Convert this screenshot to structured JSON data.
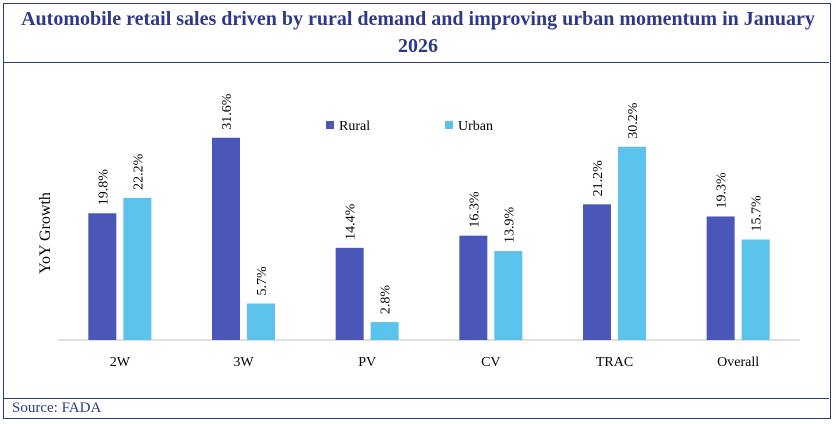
{
  "chart_data": {
    "type": "bar",
    "title": "Automobile retail sales driven by rural demand and improving urban momentum in January 2026",
    "xlabel": "",
    "ylabel": "YoY Growth",
    "ylim": [
      0,
      35
    ],
    "categories": [
      "2W",
      "3W",
      "PV",
      "CV",
      "TRAC",
      "Overall"
    ],
    "series": [
      {
        "name": "Rural",
        "color": "#4a56b8",
        "values": [
          19.8,
          31.6,
          14.4,
          16.3,
          21.2,
          19.3
        ],
        "labels": [
          "19.8%",
          "31.6%",
          "14.4%",
          "16.3%",
          "21.2%",
          "19.3%"
        ]
      },
      {
        "name": "Urban",
        "color": "#5bc2ec",
        "values": [
          22.2,
          5.7,
          2.8,
          13.9,
          30.2,
          15.7
        ],
        "labels": [
          "22.2%",
          "5.7%",
          "2.8%",
          "13.9%",
          "30.2%",
          "15.7%"
        ]
      }
    ],
    "legend_position": "top-center",
    "grid": false
  },
  "source": "Source: FADA"
}
